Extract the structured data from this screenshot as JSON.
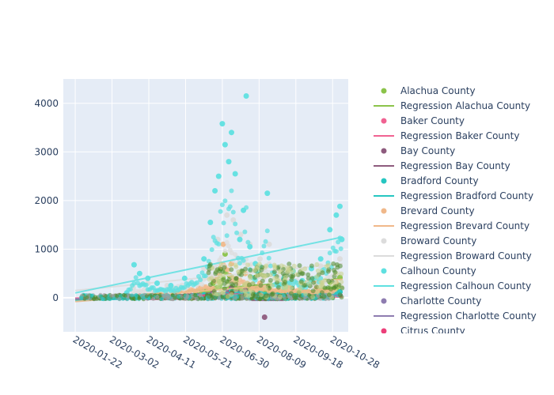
{
  "chart_data": {
    "type": "scatter",
    "title": "",
    "xlabel": "",
    "ylabel": "",
    "x_type": "date",
    "xlim": [
      "2020-01-09",
      "2020-11-14"
    ],
    "ylim": [
      -700,
      4500
    ],
    "x_ticks": [
      "2020-01-22",
      "2020-03-02",
      "2020-04-11",
      "2020-05-21",
      "2020-06-30",
      "2020-08-09",
      "2020-09-18",
      "2020-10-28"
    ],
    "y_ticks": [
      0,
      1000,
      2000,
      3000,
      4000
    ],
    "grid": true,
    "legend_placement": "right",
    "series": [
      {
        "name": "Alachua County",
        "kind": "markers",
        "color": "#8bc34a",
        "points": [
          [
            "2020-03-25",
            8
          ],
          [
            "2020-04-15",
            25
          ],
          [
            "2020-05-10",
            40
          ],
          [
            "2020-06-01",
            80
          ],
          [
            "2020-06-20",
            300
          ],
          [
            "2020-06-28",
            600
          ],
          [
            "2020-07-03",
            900
          ],
          [
            "2020-07-08",
            450
          ],
          [
            "2020-07-15",
            350
          ],
          [
            "2020-07-25",
            250
          ],
          [
            "2020-08-05",
            420
          ],
          [
            "2020-08-20",
            200
          ],
          [
            "2020-09-05",
            120
          ],
          [
            "2020-09-25",
            150
          ],
          [
            "2020-10-10",
            260
          ],
          [
            "2020-10-25",
            320
          ],
          [
            "2020-11-05",
            420
          ]
        ]
      },
      {
        "name": "Regression Alachua County",
        "kind": "line",
        "color": "#8bc34a",
        "points": [
          [
            "2020-01-22",
            -40
          ],
          [
            "2020-11-08",
            400
          ]
        ]
      },
      {
        "name": "Baker County",
        "kind": "markers",
        "color": "#f06292",
        "points": [
          [
            "2020-04-10",
            2
          ],
          [
            "2020-06-10",
            5
          ],
          [
            "2020-07-10",
            20
          ],
          [
            "2020-08-10",
            10
          ],
          [
            "2020-09-10",
            6
          ],
          [
            "2020-10-10",
            5
          ]
        ]
      },
      {
        "name": "Regression Baker County",
        "kind": "line",
        "color": "#f06292",
        "points": [
          [
            "2020-01-22",
            -5
          ],
          [
            "2020-11-08",
            15
          ]
        ]
      },
      {
        "name": "Bay County",
        "kind": "markers",
        "color": "#8e5b7e",
        "points": [
          [
            "2020-04-10",
            5
          ],
          [
            "2020-06-20",
            120
          ],
          [
            "2020-07-10",
            200
          ],
          [
            "2020-07-25",
            150
          ],
          [
            "2020-08-15",
            -400
          ],
          [
            "2020-09-10",
            60
          ],
          [
            "2020-10-10",
            40
          ]
        ]
      },
      {
        "name": "Regression Bay County",
        "kind": "line",
        "color": "#8e5b7e",
        "points": [
          [
            "2020-01-22",
            -30
          ],
          [
            "2020-11-08",
            60
          ]
        ]
      },
      {
        "name": "Bradford County",
        "kind": "markers",
        "color": "#26c6c1",
        "points": [
          [
            "2020-04-10",
            20
          ],
          [
            "2020-06-10",
            60
          ],
          [
            "2020-07-10",
            150
          ],
          [
            "2020-08-10",
            120
          ],
          [
            "2020-09-10",
            80
          ],
          [
            "2020-10-10",
            100
          ],
          [
            "2020-11-05",
            120
          ]
        ]
      },
      {
        "name": "Regression Bradford County",
        "kind": "line",
        "color": "#26c6c1",
        "points": [
          [
            "2020-01-22",
            -60
          ],
          [
            "2020-11-08",
            120
          ]
        ]
      },
      {
        "name": "Brevard County",
        "kind": "markers",
        "color": "#f0b88a",
        "points": [
          [
            "2020-04-01",
            40
          ],
          [
            "2020-06-20",
            400
          ],
          [
            "2020-07-01",
            1100
          ],
          [
            "2020-07-10",
            700
          ],
          [
            "2020-07-25",
            500
          ],
          [
            "2020-08-10",
            300
          ],
          [
            "2020-09-10",
            250
          ],
          [
            "2020-10-10",
            220
          ],
          [
            "2020-11-01",
            300
          ]
        ]
      },
      {
        "name": "Regression Brevard County",
        "kind": "line",
        "color": "#f0b88a",
        "points": [
          [
            "2020-01-22",
            -80
          ],
          [
            "2020-11-08",
            380
          ]
        ]
      },
      {
        "name": "Broward County",
        "kind": "markers",
        "color": "#dcdcdc",
        "points": [
          [
            "2020-03-25",
            200
          ],
          [
            "2020-04-10",
            300
          ],
          [
            "2020-05-01",
            250
          ],
          [
            "2020-06-10",
            600
          ],
          [
            "2020-06-25",
            1200
          ],
          [
            "2020-07-05",
            1700
          ],
          [
            "2020-07-12",
            1600
          ],
          [
            "2020-07-20",
            1300
          ],
          [
            "2020-07-30",
            1100
          ],
          [
            "2020-08-10",
            800
          ],
          [
            "2020-08-20",
            1100
          ],
          [
            "2020-09-10",
            600
          ],
          [
            "2020-09-25",
            500
          ],
          [
            "2020-10-15",
            650
          ],
          [
            "2020-11-05",
            800
          ]
        ]
      },
      {
        "name": "Regression Broward County",
        "kind": "line",
        "color": "#dcdcdc",
        "points": [
          [
            "2020-01-22",
            150
          ],
          [
            "2020-11-08",
            700
          ]
        ]
      },
      {
        "name": "Calhoun County",
        "kind": "markers",
        "color": "#5fe0e0",
        "points": [
          [
            "2020-03-18",
            100
          ],
          [
            "2020-03-26",
            680
          ],
          [
            "2020-04-01",
            500
          ],
          [
            "2020-04-10",
            400
          ],
          [
            "2020-04-20",
            300
          ],
          [
            "2020-05-05",
            250
          ],
          [
            "2020-05-20",
            400
          ],
          [
            "2020-06-10",
            800
          ],
          [
            "2020-06-17",
            1550
          ],
          [
            "2020-06-22",
            2200
          ],
          [
            "2020-06-26",
            2500
          ],
          [
            "2020-06-30",
            3580
          ],
          [
            "2020-07-03",
            3150
          ],
          [
            "2020-07-07",
            2800
          ],
          [
            "2020-07-10",
            3400
          ],
          [
            "2020-07-14",
            2550
          ],
          [
            "2020-07-19",
            1200
          ],
          [
            "2020-07-23",
            1800
          ],
          [
            "2020-07-26",
            4150
          ],
          [
            "2020-07-30",
            1050
          ],
          [
            "2020-08-05",
            700
          ],
          [
            "2020-08-18",
            2150
          ],
          [
            "2020-08-25",
            500
          ],
          [
            "2020-09-05",
            400
          ],
          [
            "2020-09-15",
            550
          ],
          [
            "2020-09-25",
            350
          ],
          [
            "2020-10-05",
            600
          ],
          [
            "2020-10-15",
            800
          ],
          [
            "2020-10-25",
            1400
          ],
          [
            "2020-11-01",
            1700
          ],
          [
            "2020-11-05",
            1880
          ],
          [
            "2020-11-07",
            1200
          ]
        ]
      },
      {
        "name": "Regression Calhoun County",
        "kind": "line",
        "color": "#5fe0e0",
        "points": [
          [
            "2020-01-22",
            100
          ],
          [
            "2020-11-08",
            1250
          ]
        ]
      },
      {
        "name": "Charlotte County",
        "kind": "markers",
        "color": "#8e7cb0",
        "points": [
          [
            "2020-04-10",
            10
          ],
          [
            "2020-06-20",
            60
          ],
          [
            "2020-07-10",
            90
          ],
          [
            "2020-08-10",
            50
          ],
          [
            "2020-09-10",
            30
          ],
          [
            "2020-10-10",
            25
          ]
        ]
      },
      {
        "name": "Regression Charlotte County",
        "kind": "line",
        "color": "#8e7cb0",
        "points": [
          [
            "2020-01-22",
            -20
          ],
          [
            "2020-11-08",
            50
          ]
        ]
      },
      {
        "name": "Citrus County",
        "kind": "markers",
        "color": "#ec407a",
        "points": [
          [
            "2020-04-10",
            5
          ],
          [
            "2020-06-20",
            40
          ],
          [
            "2020-07-10",
            80
          ],
          [
            "2020-08-10",
            40
          ],
          [
            "2020-09-10",
            20
          ]
        ]
      }
    ],
    "colors": {
      "plot_bg": "#e5ecf6",
      "grid": "#ffffff",
      "text": "#2a3f5f",
      "dense_green": "#4e8b2e"
    }
  }
}
